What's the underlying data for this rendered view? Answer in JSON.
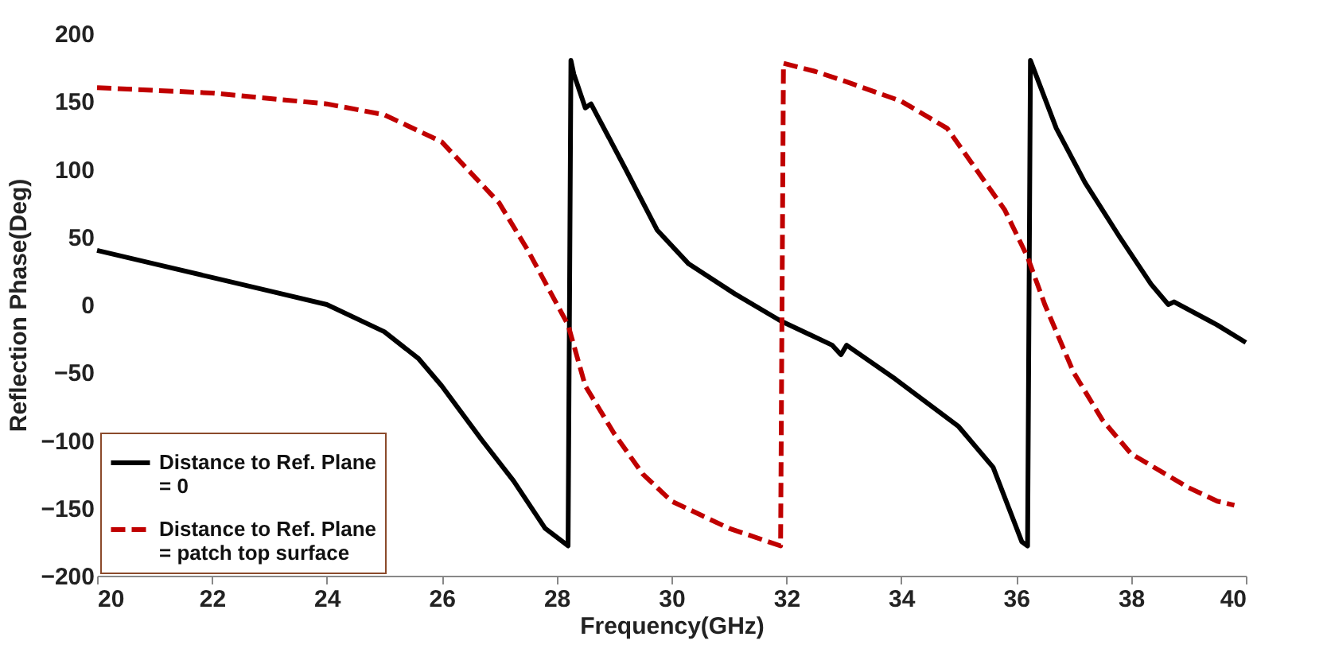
{
  "chart_data": {
    "type": "line",
    "xlabel": "Frequency(GHz)",
    "ylabel": "Reflection Phase(Deg)",
    "xlim": [
      20,
      40
    ],
    "xticks": [
      20,
      22,
      24,
      26,
      28,
      30,
      32,
      34,
      36,
      38,
      40
    ],
    "ylim": [
      -200,
      200
    ],
    "yticks": [
      -200,
      -150,
      -100,
      -50,
      0,
      50,
      100,
      150,
      200
    ],
    "grid": false,
    "legend": "bottom left",
    "series": [
      {
        "name": "Distance to Ref. Plane = 0",
        "color": "#000000",
        "line_style": "solid",
        "x": [
          20,
          21,
          22,
          23,
          24,
          25,
          25.6,
          26,
          26.7,
          27.25,
          27.8,
          28.2,
          28.25,
          28.3,
          28.5,
          28.6,
          28.7,
          29.2,
          29.75,
          30.3,
          31.1,
          31.9,
          32.8,
          32.95,
          33.05,
          33.9,
          35,
          35.6,
          36.1,
          36.2,
          36.25,
          36.7,
          37.2,
          37.8,
          38.35,
          38.65,
          38.75,
          39.5,
          40
        ],
        "values": [
          40,
          30,
          20,
          10,
          0,
          -20,
          -40,
          -60,
          -100,
          -130,
          -165,
          -178,
          180,
          170,
          145,
          148,
          140,
          100,
          55,
          30,
          8,
          -12,
          -30,
          -37,
          -30,
          -55,
          -90,
          -120,
          -175,
          -178,
          180,
          130,
          90,
          50,
          15,
          0,
          2,
          -15,
          -28
        ]
      },
      {
        "name": "Distance to Ref. Plane = patch top surface",
        "color": "#c00000",
        "line_style": "dashed",
        "x": [
          20,
          22,
          24,
          25,
          26,
          27,
          27.5,
          28.2,
          28.5,
          29,
          29.5,
          30,
          31,
          31.9,
          31.95,
          32.5,
          33,
          34,
          34.8,
          35.3,
          35.8,
          36.2,
          36.5,
          37,
          37.5,
          38,
          38.6,
          39,
          39.5,
          39.8
        ],
        "values": [
          160,
          156,
          148,
          140,
          120,
          75,
          40,
          -15,
          -60,
          -95,
          -125,
          -145,
          -165,
          -178,
          178,
          172,
          165,
          150,
          130,
          100,
          70,
          35,
          0,
          -50,
          -85,
          -110,
          -125,
          -135,
          -145,
          -148
        ]
      }
    ]
  }
}
